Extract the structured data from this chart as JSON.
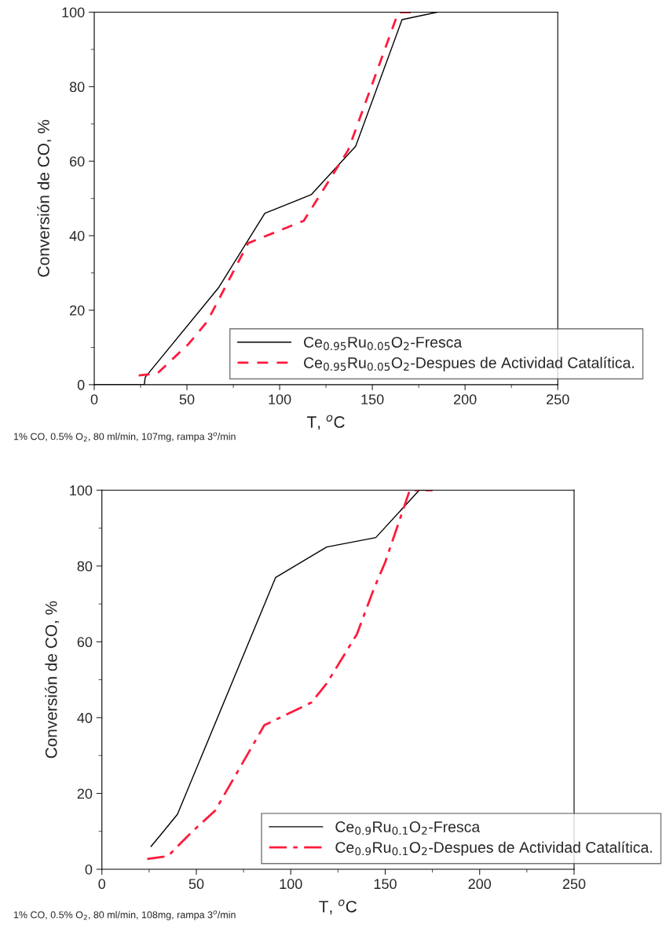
{
  "chart_data": [
    {
      "type": "line",
      "xlabel": "T, $^{o}$C",
      "ylabel": "Conversión de CO, %",
      "xlim": [
        0,
        250
      ],
      "ylim": [
        0,
        100
      ],
      "xticks": [
        0,
        50,
        100,
        150,
        200,
        250
      ],
      "yticks": [
        0,
        20,
        40,
        60,
        80,
        100
      ],
      "grid": false,
      "legend": "bottom right",
      "annotations": [
        "1% CO, 0.5% O$_{2}$, 80 ml/min, 107mg, rampa 3$^{o}$/min"
      ],
      "series": [
        {
          "name": "Ce$_{0.95}$Ru$_{0.05}$O$_{2}$-Fresca",
          "color": "#000000",
          "line_style": "solid",
          "x": [
            0,
            27,
            27.5,
            67,
            92,
            117,
            141,
            166,
            185
          ],
          "values": [
            0,
            0,
            2,
            26,
            46,
            51,
            64,
            98,
            100
          ]
        },
        {
          "name": "Ce$_{0.95}$Ru$_{0.05}$O$_{2}$-Despues de Actividad Catalítica.",
          "color": "#ff1a3c",
          "line_style": "dashed",
          "x": [
            24,
            34,
            51,
            61,
            83,
            113,
            137,
            164,
            171
          ],
          "values": [
            2.5,
            3,
            11,
            17,
            38,
            44,
            63,
            100,
            100
          ]
        }
      ]
    },
    {
      "type": "line",
      "xlabel": "T, $^{o}$C",
      "ylabel": "Conversión de CO, %",
      "xlim": [
        0,
        250
      ],
      "ylim": [
        0,
        100
      ],
      "xticks": [
        0,
        50,
        100,
        150,
        200,
        250
      ],
      "yticks": [
        0,
        20,
        40,
        60,
        80,
        100
      ],
      "grid": false,
      "legend": "bottom right",
      "annotations": [
        "1% CO, 0.5% O$_{2}$, 80 ml/min, 108mg, rampa 3$^{o}$/min"
      ],
      "series": [
        {
          "name": "Ce$_{0.9}$Ru$_{0.1}$O$_{2}$-Fresca",
          "color": "#000000",
          "line_style": "solid",
          "x": [
            26,
            31,
            40,
            92,
            119,
            145,
            168,
            175
          ],
          "values": [
            6,
            9,
            14.5,
            77,
            85,
            87.5,
            100,
            100
          ]
        },
        {
          "name": "Ce$_{0.9}$Ru$_{0.1}$O$_{2}$-Despues de Actividad Catalítica.",
          "color": "#ff1a3c",
          "line_style": "dashdot",
          "x": [
            24,
            35,
            48,
            60,
            86,
            111,
            119,
            135,
            144,
            150,
            163,
            175
          ],
          "values": [
            2.7,
            3.5,
            10,
            15.5,
            38,
            44,
            49,
            62,
            74,
            81,
            100,
            100
          ]
        }
      ]
    }
  ]
}
